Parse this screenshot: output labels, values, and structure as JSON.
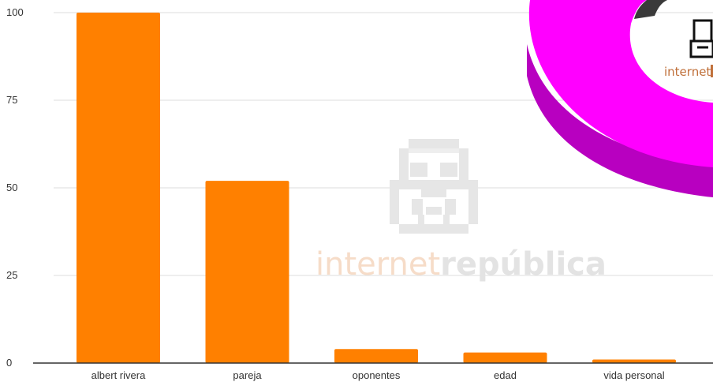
{
  "chart_data": {
    "type": "bar",
    "categories": [
      "albert rivera",
      "pareja",
      "oponentes",
      "edad",
      "vida personal"
    ],
    "values": [
      100,
      52,
      4,
      3,
      1
    ],
    "title": "",
    "xlabel": "",
    "ylabel": "",
    "ylim": [
      0,
      100
    ],
    "yticks": [
      0,
      25,
      50,
      75,
      100
    ],
    "grid": true,
    "legend": "none",
    "bar_color": "#ff8000"
  },
  "watermark": {
    "text_light": "internet",
    "text_bold": "república",
    "color_light": "#f6dcc8",
    "color_bold": "#e3e3e3",
    "icon": "stormtrooper-helmet-icon"
  },
  "corner_graphic": {
    "icon": "donut-chart-fragment",
    "ring_color": "#ff00ff",
    "ring_shadow_color": "#b800c0",
    "label_partial": "internet",
    "label_color": "#c0703a"
  }
}
